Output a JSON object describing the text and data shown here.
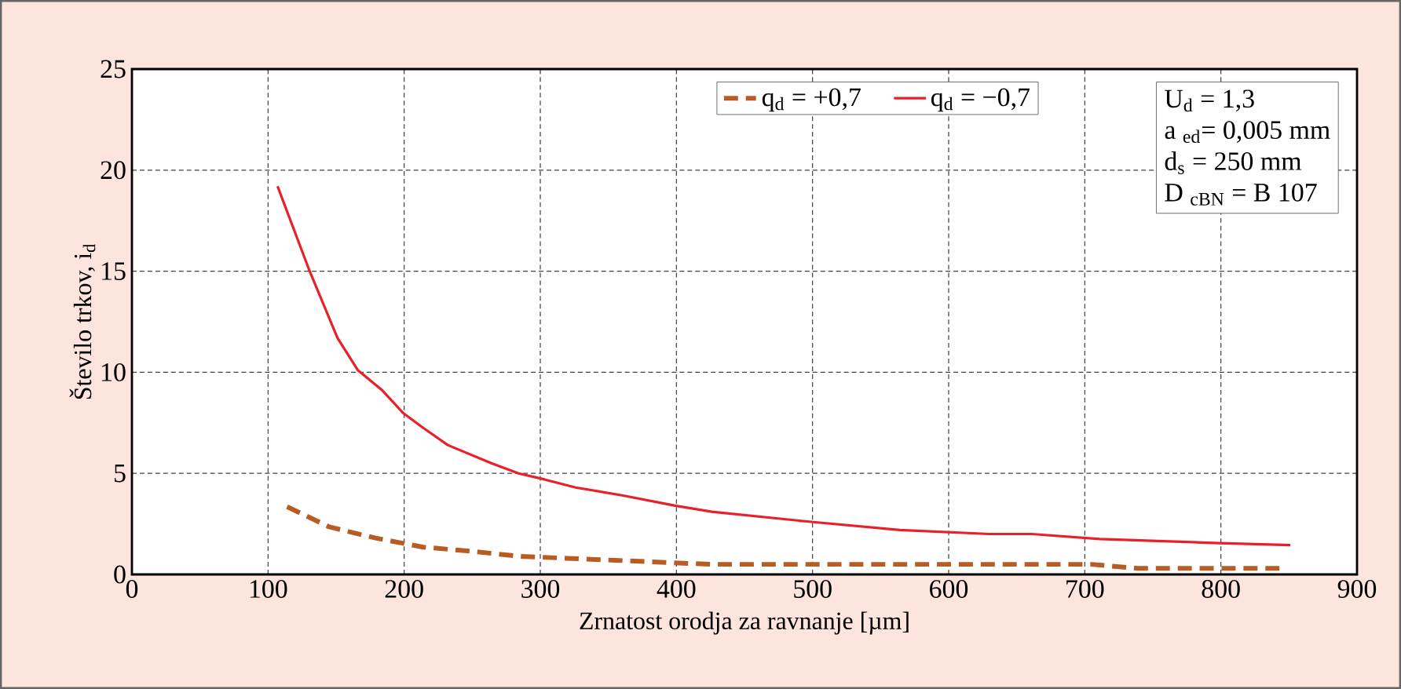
{
  "chart_data": {
    "type": "line",
    "xlabel": "Zrnatost orodja za ravnanje [µm]",
    "ylabel": "Število trkov, i$_{d}$",
    "xlim": [
      0,
      900
    ],
    "ylim": [
      0,
      25
    ],
    "xticks": [
      0,
      100,
      200,
      300,
      400,
      500,
      600,
      700,
      800,
      900
    ],
    "yticks": [
      0,
      5,
      10,
      15,
      20,
      25
    ],
    "grid": true,
    "legend": "top right",
    "annotations": [
      "U$_{d}$ = 1,3",
      "a $_{ed}$= 0,005 mm",
      "d$_{s}$ = 250 mm",
      "D $_{cBN}$ = B 107"
    ],
    "series": [
      {
        "name": "q$_{d}$ = +0,7",
        "color": "#b85c23",
        "line_style": "dashed",
        "x": [
          114,
          145,
          179,
          214,
          249,
          284,
          319,
          355,
          389,
          425,
          459,
          494,
          529,
          564,
          599,
          635,
          669,
          705,
          739,
          774,
          810,
          844
        ],
        "values": [
          3.35,
          2.35,
          1.8,
          1.35,
          1.15,
          0.9,
          0.8,
          0.7,
          0.6,
          0.5,
          0.5,
          0.5,
          0.5,
          0.5,
          0.5,
          0.5,
          0.5,
          0.5,
          0.3,
          0.3,
          0.3,
          0.3
        ]
      },
      {
        "name": "q$_{d}$ = −0,7",
        "color": "#e8202a",
        "line_style": "solid",
        "x": [
          107,
          130,
          151,
          166,
          184,
          199,
          213,
          232,
          264,
          284,
          303,
          326,
          361,
          399,
          426,
          499,
          564,
          630,
          661,
          711,
          799,
          851
        ],
        "values": [
          19.2,
          15.1,
          11.7,
          10.1,
          9.1,
          8.0,
          7.3,
          6.4,
          5.5,
          5.0,
          4.7,
          4.3,
          3.9,
          3.4,
          3.1,
          2.6,
          2.2,
          2.0,
          2.0,
          1.75,
          1.55,
          1.45
        ]
      }
    ]
  }
}
